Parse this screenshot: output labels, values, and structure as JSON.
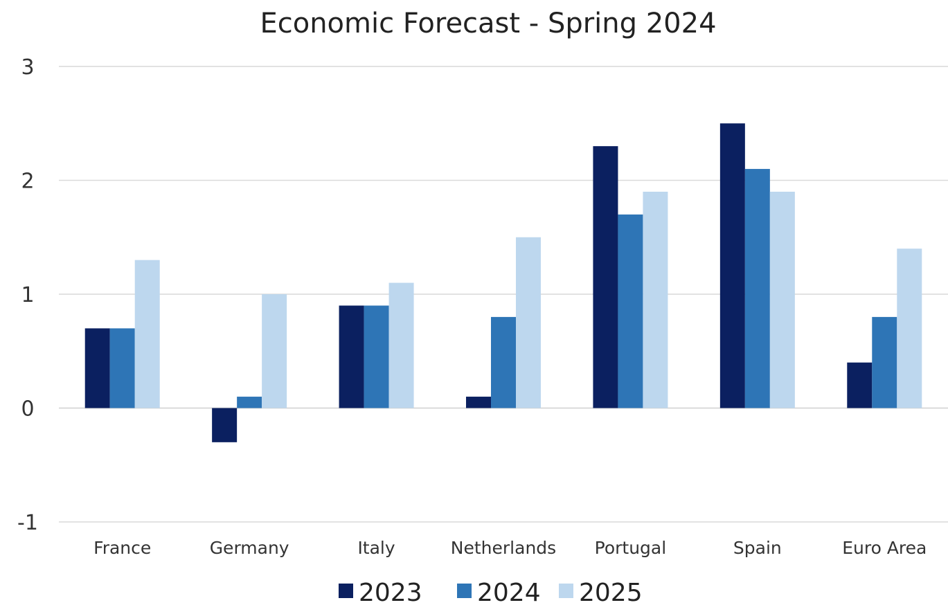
{
  "chart_data": {
    "type": "bar",
    "title": "Economic Forecast - Spring 2024",
    "xlabel": "",
    "ylabel": "",
    "categories": [
      "France",
      "Germany",
      "Italy",
      "Netherlands",
      "Portugal",
      "Spain",
      "Euro Area"
    ],
    "series": [
      {
        "name": "2023",
        "color": "#0b2060",
        "values": [
          0.7,
          -0.3,
          0.9,
          0.1,
          2.3,
          2.5,
          0.4
        ]
      },
      {
        "name": "2024",
        "color": "#2e75b6",
        "values": [
          0.7,
          0.1,
          0.9,
          0.8,
          1.7,
          2.1,
          0.8
        ]
      },
      {
        "name": "2025",
        "color": "#bdd7ee",
        "values": [
          1.3,
          1.0,
          1.1,
          1.5,
          1.9,
          1.9,
          1.4
        ]
      }
    ],
    "ylim": [
      -1,
      3
    ],
    "yticks": [
      "-1",
      "0",
      "1",
      "2",
      "3"
    ],
    "grid": true,
    "legend_position": "bottom"
  }
}
